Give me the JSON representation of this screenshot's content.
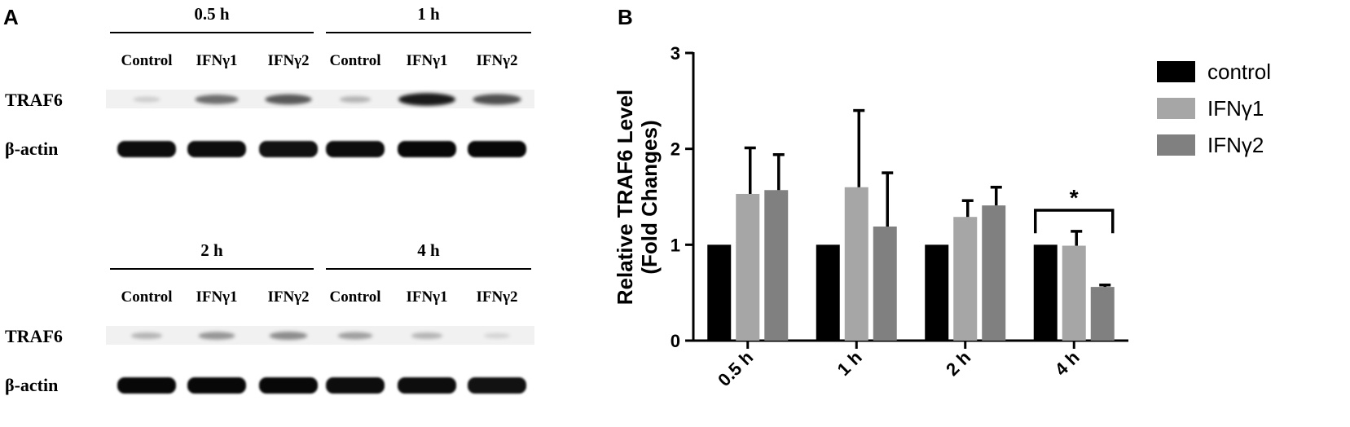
{
  "panel_a": {
    "label": "A",
    "blocks": [
      {
        "groups": [
          {
            "time": "0.5 h",
            "lanes": [
              "Control",
              "IFNγ1",
              "IFNγ2"
            ],
            "traf6": [
              0.08,
              0.55,
              0.65
            ],
            "actin": [
              0.9,
              0.9,
              0.85
            ]
          },
          {
            "time": "1 h",
            "lanes": [
              "Control",
              "IFNγ1",
              "IFNγ2"
            ],
            "traf6": [
              0.2,
              0.95,
              0.7
            ],
            "actin": [
              0.9,
              0.95,
              0.95
            ]
          }
        ],
        "rows": [
          "TRAF6",
          "β-actin"
        ]
      },
      {
        "groups": [
          {
            "time": "2 h",
            "lanes": [
              "Control",
              "IFNγ1",
              "IFNγ2"
            ],
            "traf6": [
              0.2,
              0.35,
              0.4
            ],
            "actin": [
              0.95,
              0.95,
              0.95
            ]
          },
          {
            "time": "4 h",
            "lanes": [
              "Control",
              "IFNγ1",
              "IFNγ2"
            ],
            "traf6": [
              0.3,
              0.2,
              0.05
            ],
            "actin": [
              0.9,
              0.9,
              0.85
            ]
          }
        ],
        "rows": [
          "TRAF6",
          "β-actin"
        ]
      }
    ]
  },
  "panel_b": {
    "label": "B"
  },
  "chart_data": {
    "type": "bar",
    "title": "",
    "xlabel": "",
    "ylabel_line1": "Relative TRAF6 Level",
    "ylabel_line2": "(Fold Changes)",
    "ylim": [
      0,
      3
    ],
    "yticks": [
      "0",
      "1",
      "2",
      "3"
    ],
    "categories": [
      "0.5 h",
      "1 h",
      "2 h",
      "4 h"
    ],
    "series": [
      {
        "name": "control",
        "color": "#000000",
        "values": [
          1.0,
          1.0,
          1.0,
          1.0
        ],
        "errors": [
          0,
          0,
          0,
          0
        ]
      },
      {
        "name": "IFNγ1",
        "color": "#a6a6a6",
        "values": [
          1.53,
          1.6,
          1.29,
          0.99
        ],
        "errors": [
          0.48,
          0.8,
          0.17,
          0.15
        ]
      },
      {
        "name": "IFNγ2",
        "color": "#808080",
        "values": [
          1.57,
          1.19,
          1.41,
          0.56
        ],
        "errors": [
          0.37,
          0.56,
          0.19,
          0.02
        ]
      }
    ],
    "legend_position": "top-right",
    "annotation": {
      "text": "*",
      "category": "4 h",
      "from_series": 0,
      "to_series": 2
    }
  }
}
